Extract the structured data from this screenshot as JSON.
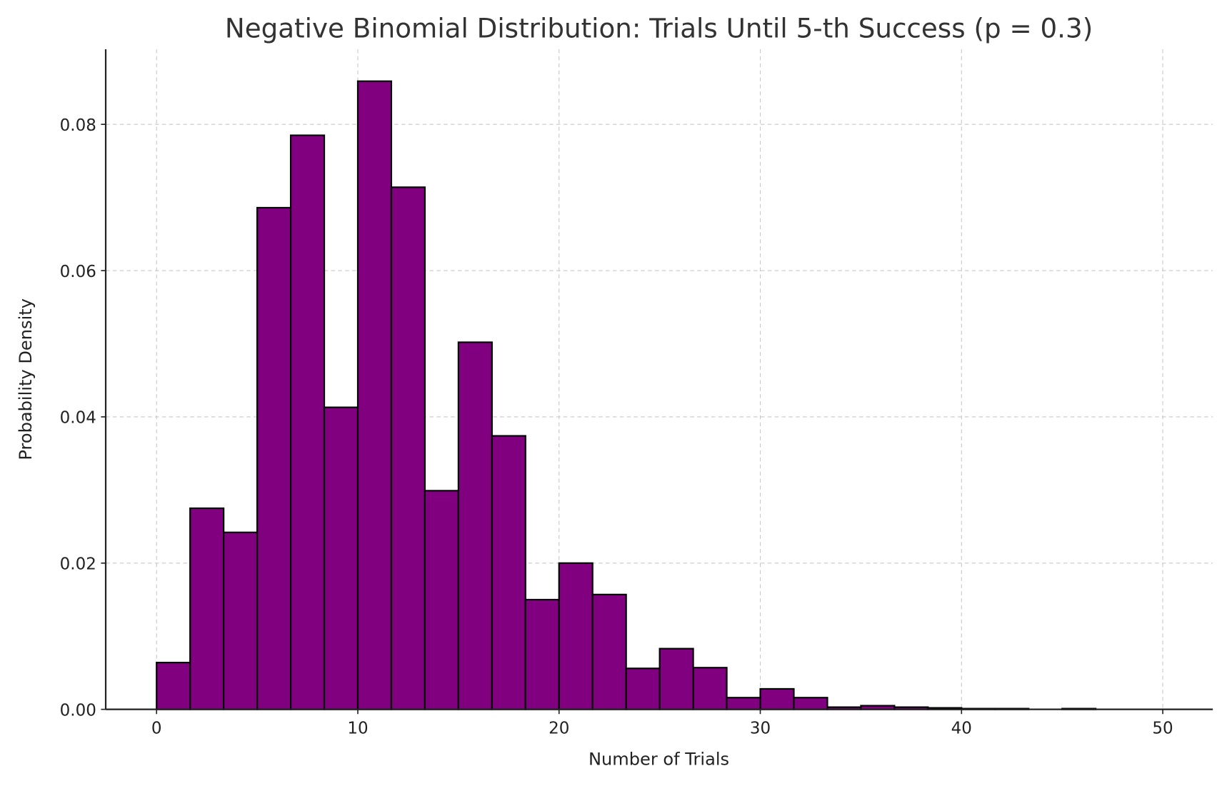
{
  "chart_data": {
    "type": "bar",
    "title": "Negative Binomial Distribution: Trials Until 5-th Success (p = 0.3)",
    "xlabel": "Number of Trials",
    "ylabel": "Probability Density",
    "xlim": [
      -2.5,
      52.5
    ],
    "ylim": [
      0,
      0.0905
    ],
    "xticks": [
      0,
      10,
      20,
      30,
      40,
      50
    ],
    "xtick_labels": [
      "0",
      "10",
      "20",
      "30",
      "40",
      "50"
    ],
    "yticks": [
      0,
      0.02,
      0.04,
      0.06,
      0.08
    ],
    "ytick_labels": [
      "0.00",
      "0.02",
      "0.04",
      "0.06",
      "0.08"
    ],
    "grid": true,
    "bar_color": "#800080",
    "edge_color": "#000000",
    "bin_start": 0,
    "bin_width": 1.6667,
    "values": [
      0.0064,
      0.0275,
      0.0242,
      0.0686,
      0.0785,
      0.0413,
      0.0859,
      0.0714,
      0.0299,
      0.0502,
      0.0374,
      0.015,
      0.02,
      0.0157,
      0.0056,
      0.0083,
      0.0057,
      0.0016,
      0.0028,
      0.0016,
      0.0003,
      0.0005,
      0.0003,
      0.0002,
      0.0001,
      0.0001,
      0,
      0.0001,
      0,
      0
    ]
  }
}
